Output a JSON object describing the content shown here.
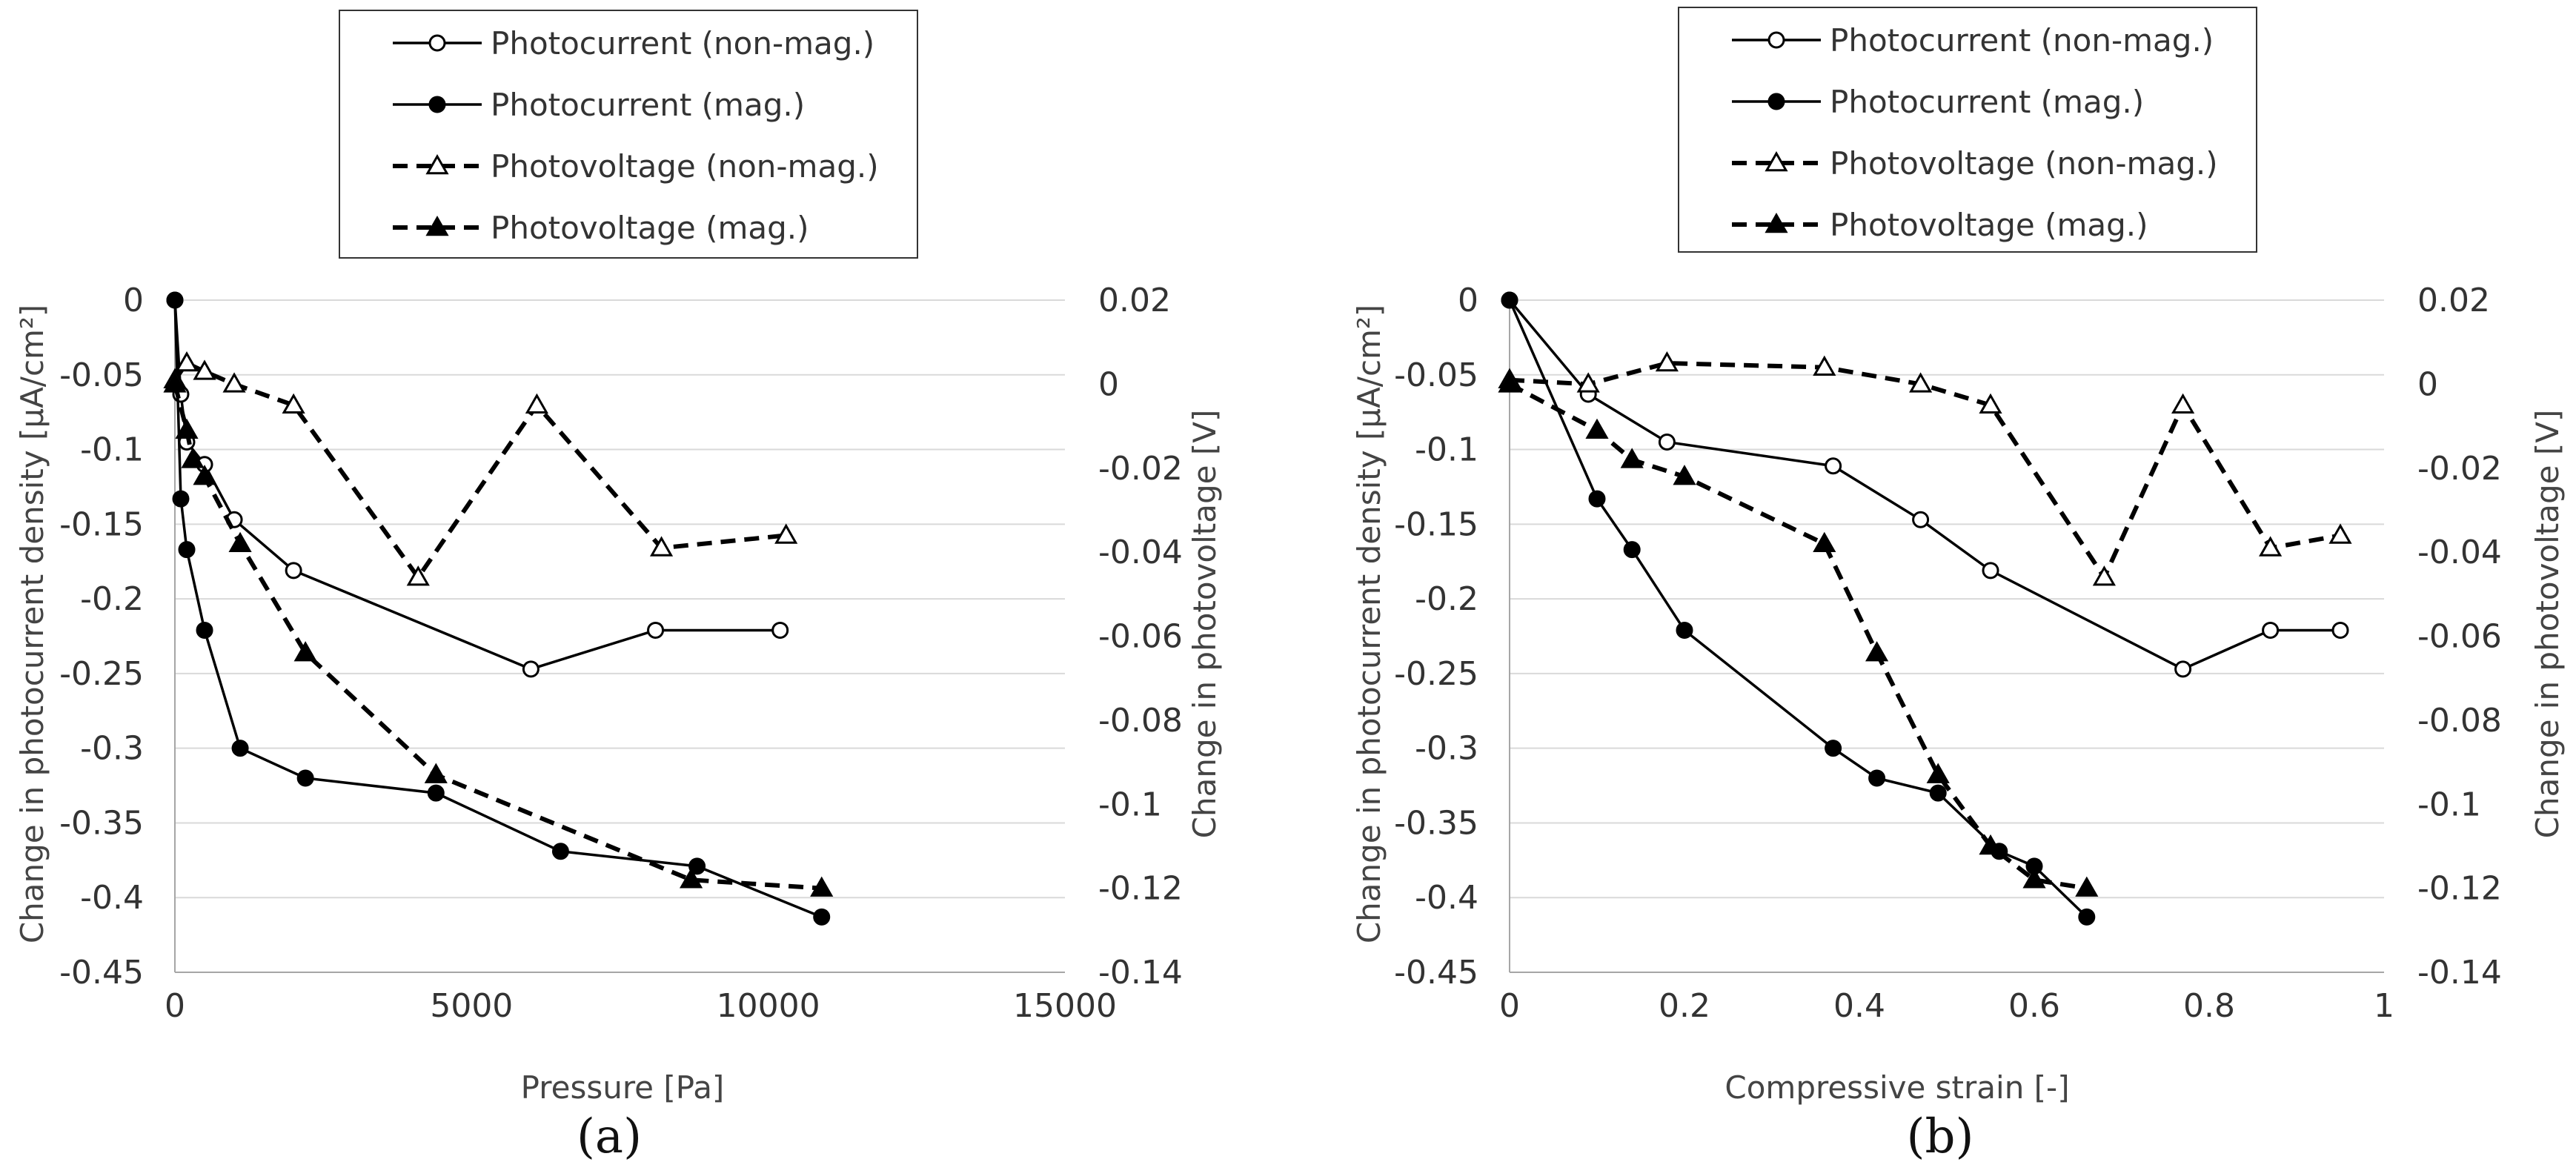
{
  "chart_data": [
    {
      "type": "line",
      "panel_label": "(a)",
      "xlabel": "Pressure   [Pa]",
      "ylabel_left": "Change in photocurrent density  [μA/cm²]",
      "ylabel_right": "Change in photovoltage  [V]",
      "xlim": [
        0,
        15000
      ],
      "xticks": [
        "0",
        "5000",
        "10000",
        "15000"
      ],
      "ylim_left": [
        -0.45,
        0
      ],
      "yticks_left": [
        "0",
        "-0.05",
        "-0.1",
        "-0.15",
        "-0.2",
        "-0.25",
        "-0.3",
        "-0.35",
        "-0.4",
        "-0.45"
      ],
      "ylim_right": [
        -0.14,
        0.02
      ],
      "yticks_right": [
        "0.02",
        "0",
        "-0.02",
        "-0.04",
        "-0.06",
        "-0.08",
        "-0.1",
        "-0.12",
        "-0.14"
      ],
      "legend": [
        "Photocurrent (non-mag.)",
        "Photocurrent (mag.)",
        "Photovoltage (non-mag.)",
        "Photovoltage (mag.)"
      ],
      "series": [
        {
          "name": "Photocurrent (non-mag.)",
          "axis": "left",
          "marker": "open-circle",
          "dash": false,
          "x": [
            0,
            100,
            200,
            500,
            1000,
            2000,
            6000,
            8100,
            10200
          ],
          "y": [
            0,
            -0.063,
            -0.095,
            -0.11,
            -0.147,
            -0.181,
            -0.247,
            -0.221,
            -0.221
          ]
        },
        {
          "name": "Photocurrent (mag.)",
          "axis": "left",
          "marker": "filled-circle",
          "dash": false,
          "x": [
            0,
            100,
            200,
            500,
            1100,
            2200,
            4400,
            6500,
            8800,
            10900
          ],
          "y": [
            0,
            -0.133,
            -0.167,
            -0.221,
            -0.3,
            -0.32,
            -0.33,
            -0.369,
            -0.379,
            -0.413
          ]
        },
        {
          "name": "Photovoltage (non-mag.)",
          "axis": "right",
          "marker": "open-triangle",
          "dash": true,
          "x": [
            0,
            200,
            500,
            1000,
            2000,
            4100,
            6100,
            8200,
            10300
          ],
          "y": [
            0.001,
            0.005,
            0.003,
            0.0,
            -0.005,
            -0.046,
            -0.005,
            -0.039,
            -0.036
          ]
        },
        {
          "name": "Photovoltage (mag.)",
          "axis": "right",
          "marker": "filled-triangle",
          "dash": true,
          "x": [
            0,
            200,
            300,
            500,
            1100,
            2200,
            4400,
            8700,
            10900
          ],
          "y": [
            0.0,
            -0.011,
            -0.018,
            -0.022,
            -0.038,
            -0.064,
            -0.093,
            -0.118,
            -0.12
          ]
        }
      ]
    },
    {
      "type": "line",
      "panel_label": "(b)",
      "xlabel": "Compressive strain  [-]",
      "ylabel_left": "Change in photocurrent density  [μA/cm²]",
      "ylabel_right": "Change in photovoltage  [V]",
      "xlim": [
        0,
        1
      ],
      "xticks": [
        "0",
        "0.2",
        "0.4",
        "0.6",
        "0.8",
        "1"
      ],
      "ylim_left": [
        -0.45,
        0
      ],
      "yticks_left": [
        "0",
        "-0.05",
        "-0.1",
        "-0.15",
        "-0.2",
        "-0.25",
        "-0.3",
        "-0.35",
        "-0.4",
        "-0.45"
      ],
      "ylim_right": [
        -0.14,
        0.02
      ],
      "yticks_right": [
        "0.02",
        "0",
        "-0.02",
        "-0.04",
        "-0.06",
        "-0.08",
        "-0.1",
        "-0.12",
        "-0.14"
      ],
      "legend": [
        "Photocurrent (non-mag.)",
        "Photocurrent (mag.)",
        "Photovoltage (non-mag.)",
        "Photovoltage (mag.)"
      ],
      "series": [
        {
          "name": "Photocurrent (non-mag.)",
          "axis": "left",
          "marker": "open-circle",
          "dash": false,
          "x": [
            0,
            0.09,
            0.18,
            0.37,
            0.47,
            0.55,
            0.77,
            0.87,
            0.95
          ],
          "y": [
            0,
            -0.063,
            -0.095,
            -0.111,
            -0.147,
            -0.181,
            -0.247,
            -0.221,
            -0.221
          ]
        },
        {
          "name": "Photocurrent (mag.)",
          "axis": "left",
          "marker": "filled-circle",
          "dash": false,
          "x": [
            0,
            0.1,
            0.14,
            0.2,
            0.37,
            0.42,
            0.49,
            0.56,
            0.6,
            0.66
          ],
          "y": [
            0,
            -0.133,
            -0.167,
            -0.221,
            -0.3,
            -0.32,
            -0.33,
            -0.369,
            -0.379,
            -0.413
          ]
        },
        {
          "name": "Photovoltage (non-mag.)",
          "axis": "right",
          "marker": "open-triangle",
          "dash": true,
          "x": [
            0,
            0.09,
            0.18,
            0.36,
            0.47,
            0.55,
            0.68,
            0.77,
            0.87,
            0.95
          ],
          "y": [
            0.001,
            0.0,
            0.005,
            0.004,
            0.0,
            -0.005,
            -0.046,
            -0.005,
            -0.039,
            -0.036
          ]
        },
        {
          "name": "Photovoltage (mag.)",
          "axis": "right",
          "marker": "filled-triangle",
          "dash": true,
          "x": [
            0,
            0.1,
            0.14,
            0.2,
            0.36,
            0.42,
            0.49,
            0.55,
            0.6,
            0.66
          ],
          "y": [
            0.0,
            -0.011,
            -0.018,
            -0.022,
            -0.038,
            -0.064,
            -0.093,
            -0.11,
            -0.118,
            -0.12
          ]
        }
      ]
    }
  ]
}
